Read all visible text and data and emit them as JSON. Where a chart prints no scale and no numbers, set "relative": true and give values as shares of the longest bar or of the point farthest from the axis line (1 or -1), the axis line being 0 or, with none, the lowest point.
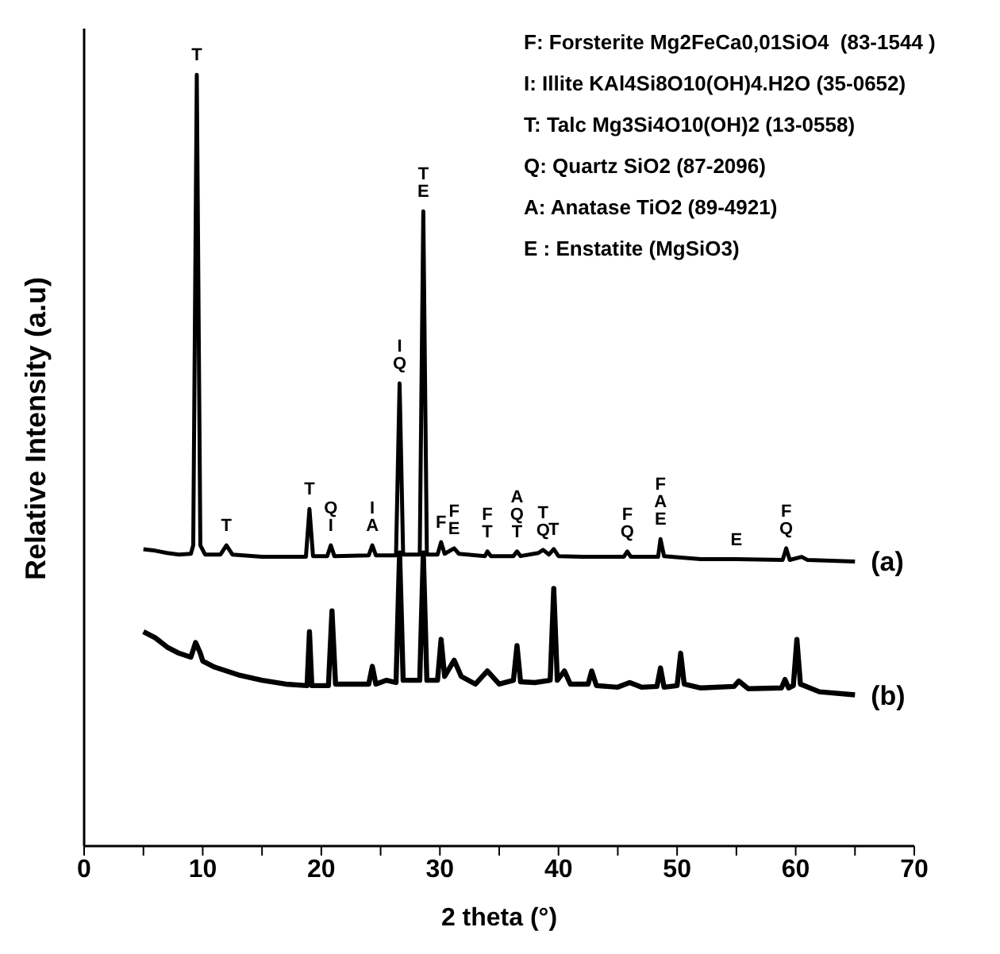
{
  "chart_data": {
    "type": "line",
    "xlabel": "2 theta (°)",
    "ylabel": "Relative Intensity (a.u)",
    "relative": true,
    "xlim": [
      0,
      70
    ],
    "xticks": [
      0,
      {
        "value": 5,
        "label": null
      },
      10,
      {
        "value": 15,
        "label": null
      },
      20,
      {
        "value": 25,
        "label": null
      },
      30,
      {
        "value": 35,
        "label": null
      },
      40,
      {
        "value": 45,
        "label": null
      },
      50,
      {
        "value": 55,
        "label": null
      },
      60,
      {
        "value": 65,
        "label": null
      },
      70
    ],
    "grid": false,
    "legend": false,
    "marker": "none",
    "line_style": "solid",
    "series": [
      {
        "name": "(a)",
        "color": "#000000",
        "x": [
          5,
          6,
          7,
          8,
          9,
          9.2,
          9.5,
          9.8,
          10.2,
          11.5,
          12,
          12.5,
          15,
          18.7,
          19,
          19.3,
          20.5,
          20.8,
          21.1,
          24,
          24.3,
          24.6,
          26.3,
          26.6,
          26.9,
          28.3,
          28.6,
          28.9,
          29.8,
          30.1,
          30.4,
          31.2,
          31.6,
          33.8,
          34,
          34.3,
          36.2,
          36.5,
          36.8,
          38.3,
          38.7,
          39.2,
          39.6,
          40,
          42,
          45.5,
          45.8,
          46.1,
          48.4,
          48.6,
          48.9,
          52,
          55,
          58.9,
          59.2,
          59.5,
          60.5,
          61,
          65
        ],
        "values": [
          0.385,
          0.383,
          0.38,
          0.378,
          0.379,
          0.39,
          1.0,
          0.39,
          0.378,
          0.378,
          0.39,
          0.378,
          0.375,
          0.375,
          0.437,
          0.376,
          0.376,
          0.39,
          0.376,
          0.377,
          0.39,
          0.377,
          0.377,
          0.6,
          0.378,
          0.378,
          0.823,
          0.378,
          0.378,
          0.394,
          0.379,
          0.386,
          0.379,
          0.376,
          0.382,
          0.376,
          0.376,
          0.382,
          0.376,
          0.38,
          0.384,
          0.378,
          0.385,
          0.376,
          0.375,
          0.375,
          0.382,
          0.375,
          0.375,
          0.398,
          0.376,
          0.372,
          0.372,
          0.371,
          0.386,
          0.371,
          0.375,
          0.371,
          0.369
        ]
      },
      {
        "name": "(b)",
        "color": "#000000",
        "x": [
          5,
          6,
          7,
          8,
          9,
          9.4,
          9.8,
          10,
          11,
          13,
          15,
          17,
          18.8,
          19,
          19.2,
          20.6,
          20.9,
          21.2,
          24,
          24.3,
          24.6,
          25.5,
          26.3,
          26.6,
          26.9,
          28.3,
          28.6,
          28.9,
          29.8,
          30.1,
          30.4,
          31.2,
          31.8,
          33,
          34,
          35,
          36.2,
          36.5,
          36.8,
          38,
          39.3,
          39.6,
          39.9,
          40.5,
          41,
          42.5,
          42.8,
          43.2,
          45,
          46,
          47,
          48.3,
          48.6,
          48.9,
          50,
          50.3,
          50.6,
          52,
          54.8,
          55.2,
          56,
          58.8,
          59.1,
          59.4,
          59.8,
          60.1,
          60.4,
          62,
          65
        ],
        "values": [
          0.278,
          0.27,
          0.258,
          0.25,
          0.245,
          0.264,
          0.25,
          0.24,
          0.232,
          0.222,
          0.215,
          0.21,
          0.208,
          0.278,
          0.208,
          0.208,
          0.305,
          0.21,
          0.21,
          0.233,
          0.21,
          0.215,
          0.212,
          0.38,
          0.215,
          0.215,
          0.38,
          0.215,
          0.215,
          0.268,
          0.22,
          0.241,
          0.22,
          0.21,
          0.227,
          0.21,
          0.215,
          0.26,
          0.213,
          0.212,
          0.215,
          0.334,
          0.215,
          0.227,
          0.21,
          0.21,
          0.227,
          0.208,
          0.206,
          0.212,
          0.206,
          0.207,
          0.231,
          0.206,
          0.208,
          0.25,
          0.21,
          0.205,
          0.207,
          0.214,
          0.204,
          0.205,
          0.216,
          0.205,
          0.208,
          0.268,
          0.21,
          0.2,
          0.196
        ]
      }
    ],
    "annotations": [
      "F: Forsterite Mg2FeCa0,01SiO4  (83-1544 )",
      "I: Illite KAl4Si8O10(OH)4.H2O (35-0652)",
      "T: Talc Mg3Si4O10(OH)2 (13-0558)",
      "Q: Quartz SiO2 (87-2096)",
      "A: Anatase TiO2 (89-4921)",
      "E : Enstatite (MgSiO3)",
      {
        "text": "T",
        "x": 9.5,
        "y": 1.0
      },
      {
        "text": "T",
        "x": 12,
        "y": 0.39
      },
      {
        "text": "T",
        "x": 19,
        "y": 0.437
      },
      {
        "text": "I",
        "x": 20.8,
        "y": 0.39
      },
      {
        "text": "Q",
        "x": 20.8,
        "y": 0.39
      },
      {
        "text": "A",
        "x": 24.3,
        "y": 0.39
      },
      {
        "text": "I",
        "x": 24.3,
        "y": 0.39
      },
      {
        "text": "Q",
        "x": 26.6,
        "y": 0.6
      },
      {
        "text": "I",
        "x": 26.6,
        "y": 0.6
      },
      {
        "text": "E",
        "x": 28.6,
        "y": 0.823
      },
      {
        "text": "T",
        "x": 28.6,
        "y": 0.823
      },
      {
        "text": "F",
        "x": 30.1,
        "y": 0.394
      },
      {
        "text": "E",
        "x": 31.2,
        "y": 0.386
      },
      {
        "text": "F",
        "x": 31.2,
        "y": 0.386
      },
      {
        "text": "T",
        "x": 34,
        "y": 0.382
      },
      {
        "text": "F",
        "x": 34,
        "y": 0.382
      },
      {
        "text": "T",
        "x": 36.5,
        "y": 0.382
      },
      {
        "text": "Q",
        "x": 36.5,
        "y": 0.382
      },
      {
        "text": "A",
        "x": 36.5,
        "y": 0.382
      },
      {
        "text": "Q",
        "x": 38.7,
        "y": 0.384
      },
      {
        "text": "T",
        "x": 38.7,
        "y": 0.384
      },
      {
        "text": "T",
        "x": 39.6,
        "y": 0.385
      },
      {
        "text": "Q",
        "x": 45.8,
        "y": 0.382
      },
      {
        "text": "F",
        "x": 45.8,
        "y": 0.382
      },
      {
        "text": "E",
        "x": 48.6,
        "y": 0.398
      },
      {
        "text": "A",
        "x": 48.6,
        "y": 0.398
      },
      {
        "text": "F",
        "x": 48.6,
        "y": 0.398
      },
      {
        "text": "E",
        "x": 55,
        "y": 0.372
      },
      {
        "text": "Q",
        "x": 59.2,
        "y": 0.386
      },
      {
        "text": "F",
        "x": 59.2,
        "y": 0.386
      }
    ]
  }
}
